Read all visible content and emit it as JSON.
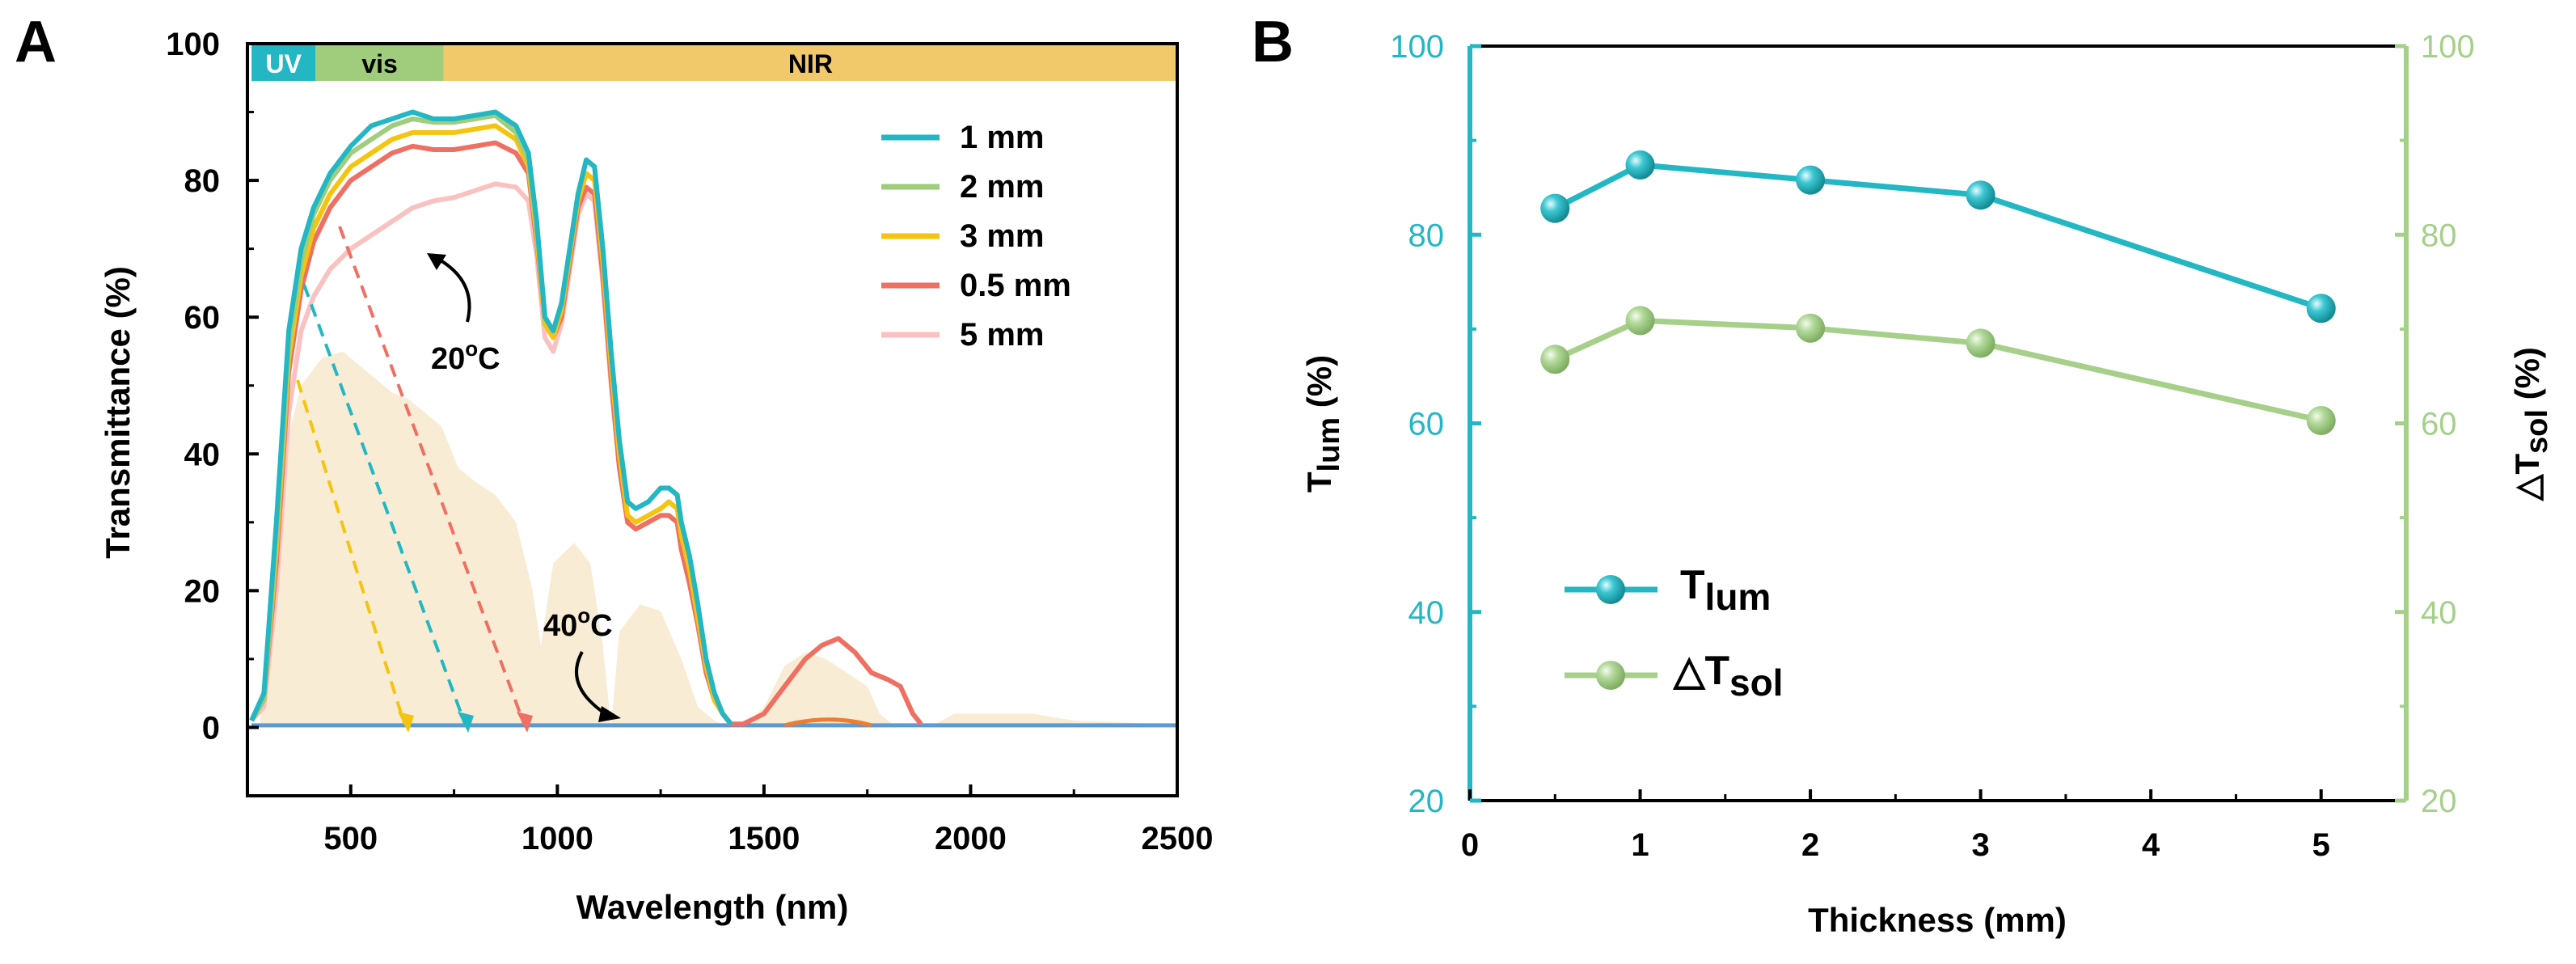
{
  "panelA": {
    "letter": "A",
    "xlabel": "Wavelength (nm)",
    "ylabel": "Transmittance (%)",
    "annot_20": {
      "main": "20",
      "sup": "o",
      "unit": "C"
    },
    "annot_40": {
      "main": "40",
      "sup": "o",
      "unit": "C"
    },
    "bands": [
      {
        "label": "UV",
        "from": 260,
        "to": 415,
        "color": "#23b7c4"
      },
      {
        "label": "vis",
        "from": 415,
        "to": 725,
        "color": "#9fcd7b"
      },
      {
        "label": "NIR",
        "from": 725,
        "to": 2500,
        "color": "#f2c96a"
      }
    ]
  },
  "panelB": {
    "letter": "B",
    "xlabel": "Thickness (mm)",
    "ylabel_left": {
      "main": "T",
      "sub": "lum",
      "unit": " (%)"
    },
    "ylabel_right": {
      "main": "△T",
      "sub": "sol",
      "unit": " (%)"
    },
    "legend": [
      {
        "main": "T",
        "sub": "lum"
      },
      {
        "main": "△T",
        "sub": "sol"
      }
    ]
  },
  "chart_data": [
    {
      "type": "line",
      "xlim": [
        250,
        2500
      ],
      "ylim": [
        -10,
        100
      ],
      "xticks": [
        500,
        1000,
        1500,
        2000,
        2500
      ],
      "yticks": [
        0,
        20,
        40,
        60,
        80,
        100
      ],
      "grid": false,
      "legend_position": "top-right",
      "series": [
        {
          "name": "1 mm",
          "color": "#23b7c4",
          "x": [
            260,
            290,
            320,
            350,
            380,
            410,
            450,
            500,
            550,
            600,
            650,
            700,
            750,
            800,
            850,
            900,
            930,
            950,
            970,
            990,
            1010,
            1030,
            1050,
            1070,
            1090,
            1110,
            1130,
            1150,
            1170,
            1190,
            1220,
            1250,
            1270,
            1290,
            1300,
            1320,
            1340,
            1360,
            1380,
            1400,
            1420
          ],
          "y": [
            1,
            5,
            30,
            58,
            70,
            76,
            81,
            85,
            88,
            89,
            90,
            89,
            89,
            89.5,
            90,
            88,
            84,
            74,
            60,
            58,
            62,
            70,
            78,
            83,
            82,
            70,
            55,
            42,
            33,
            32,
            33,
            35,
            35,
            34,
            30,
            25,
            18,
            10,
            5,
            2,
            0.5
          ]
        },
        {
          "name": "2 mm",
          "color": "#9fcd7b",
          "x": [
            260,
            290,
            320,
            350,
            380,
            410,
            450,
            500,
            550,
            600,
            650,
            700,
            750,
            800,
            850,
            900,
            930,
            950,
            970,
            990,
            1010,
            1030,
            1050,
            1070,
            1090,
            1110,
            1130,
            1150,
            1170,
            1190,
            1220,
            1250,
            1270,
            1290,
            1300,
            1320,
            1340,
            1360,
            1380,
            1400,
            1420
          ],
          "y": [
            1,
            4,
            28,
            56,
            68,
            75,
            80,
            84,
            86,
            88,
            89,
            88.5,
            88.5,
            89,
            89.5,
            87,
            83,
            73,
            60,
            58,
            62,
            70,
            78,
            83,
            82,
            70,
            55,
            42,
            33,
            32,
            33,
            35,
            35,
            34,
            30,
            25,
            18,
            10,
            5,
            2,
            0.5
          ]
        },
        {
          "name": "3 mm",
          "color": "#f4c40e",
          "x": [
            260,
            290,
            320,
            350,
            380,
            410,
            450,
            500,
            550,
            600,
            650,
            700,
            750,
            800,
            850,
            900,
            930,
            950,
            970,
            990,
            1010,
            1030,
            1050,
            1070,
            1090,
            1110,
            1130,
            1150,
            1170,
            1190,
            1220,
            1250,
            1270,
            1290,
            1300,
            1320,
            1340,
            1360,
            1380,
            1400,
            1420
          ],
          "y": [
            1,
            4,
            26,
            54,
            66,
            73,
            78,
            82,
            84,
            86,
            87,
            87,
            87,
            87.5,
            88,
            86,
            82,
            72,
            59,
            57,
            61,
            69,
            77,
            81,
            80,
            68,
            53,
            40,
            31,
            30,
            31,
            32,
            33,
            32,
            28,
            23,
            16,
            9,
            4,
            2,
            0.5
          ]
        },
        {
          "name": "0.5 mm",
          "color": "#ef6f63",
          "x": [
            260,
            290,
            320,
            350,
            380,
            410,
            450,
            500,
            550,
            600,
            650,
            700,
            750,
            800,
            850,
            900,
            930,
            950,
            970,
            990,
            1010,
            1030,
            1050,
            1070,
            1090,
            1110,
            1130,
            1150,
            1170,
            1190,
            1220,
            1250,
            1270,
            1290,
            1300,
            1320,
            1340,
            1360,
            1380,
            1400,
            1420,
            1450,
            1500,
            1550,
            1600,
            1640,
            1680,
            1720,
            1760,
            1800,
            1830,
            1860,
            1880
          ],
          "y": [
            1,
            4,
            24,
            52,
            64,
            71,
            76,
            80,
            82,
            84,
            85,
            84.5,
            84.5,
            85,
            85.5,
            84,
            81,
            71,
            59,
            57,
            60,
            68,
            76,
            79,
            78,
            66,
            51,
            38,
            30,
            29,
            30,
            31,
            31,
            30,
            26,
            21,
            15,
            8,
            4,
            2,
            0.5,
            0.5,
            2,
            6,
            10,
            12,
            13,
            11,
            8,
            7,
            6,
            2,
            0.5
          ]
        },
        {
          "name": "5 mm",
          "color": "#f9c2c0",
          "x": [
            260,
            290,
            320,
            350,
            380,
            410,
            450,
            500,
            550,
            600,
            650,
            700,
            750,
            800,
            850,
            900,
            930,
            950,
            970,
            990,
            1010,
            1030,
            1050,
            1070,
            1090,
            1110,
            1130,
            1150,
            1170,
            1190,
            1220,
            1250,
            1270,
            1290,
            1300,
            1320,
            1340,
            1360,
            1380,
            1400,
            1420
          ],
          "y": [
            1,
            3,
            20,
            46,
            58,
            63,
            67,
            70,
            72,
            74,
            76,
            77,
            77.5,
            78.5,
            79.5,
            79,
            77,
            69,
            57,
            55,
            59,
            67,
            75,
            78,
            77,
            65,
            50,
            38,
            30,
            29,
            30,
            31,
            31,
            30,
            26,
            21,
            15,
            8,
            4,
            2,
            0.5
          ]
        }
      ]
    },
    {
      "type": "line",
      "xlim": [
        0,
        5.5
      ],
      "ylim_left": [
        20,
        100
      ],
      "ylim_right": [
        20,
        100
      ],
      "xticks": [
        0,
        1,
        2,
        3,
        4,
        5
      ],
      "yticks": [
        20,
        40,
        60,
        80,
        100
      ],
      "grid": false,
      "legend_position": "bottom-left",
      "series": [
        {
          "name": "Tlum",
          "color": "#23b7c4",
          "axis": "left",
          "x": [
            0.5,
            1,
            2,
            3,
            5
          ],
          "y": [
            82.8,
            87.4,
            85.8,
            84.2,
            72.2
          ]
        },
        {
          "name": "△Tsol",
          "color": "#a6d08a",
          "axis": "right",
          "x": [
            0.5,
            1,
            2,
            3,
            5
          ],
          "y": [
            66.8,
            70.9,
            70.1,
            68.5,
            60.3
          ]
        }
      ]
    }
  ]
}
